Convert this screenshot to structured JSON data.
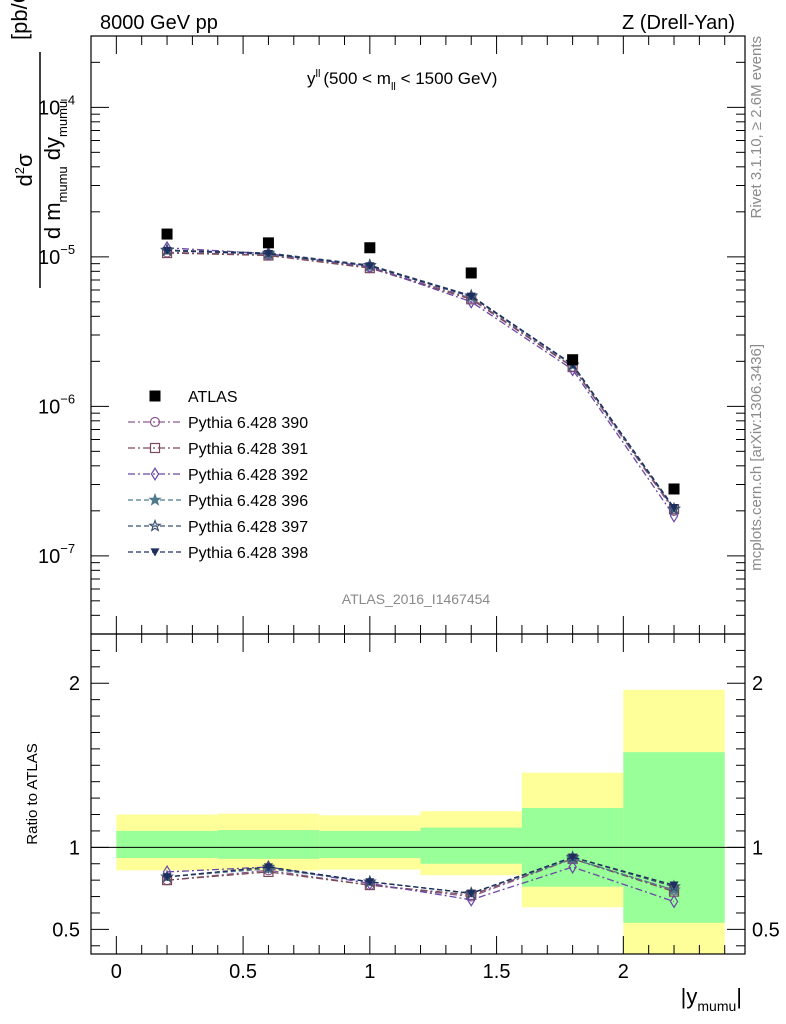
{
  "header": {
    "left": "8000 GeV pp",
    "right": "Z (Drell-Yan)"
  },
  "side_labels": {
    "rivet": "Rivet 3.1.10, ≥ 2.6M events",
    "mcplots": "mcplots.cern.ch [arXiv:1306.3436]"
  },
  "chart_data": {
    "type": "scatter",
    "title": {
      "main": "y",
      "main_sup": "ll",
      "cut_open": "(500 < m",
      "cut_sub": "ll",
      "cut_close": " < 1500 GeV)"
    },
    "analysis_id": "ATLAS_2016_I1467454",
    "x": [
      0.2,
      0.6,
      1.0,
      1.4,
      1.8,
      2.2
    ],
    "x_edges": [
      0,
      0.4,
      0.8,
      1.2,
      1.6,
      2.0,
      2.4
    ],
    "xlim": [
      -0.1,
      2.48
    ],
    "xlabel": {
      "main": "|y",
      "sub": "mumu",
      "close": "|"
    },
    "x_ticks": [
      "0",
      "0.5",
      "1",
      "1.5",
      "2"
    ],
    "x_tick_values": [
      0,
      0.5,
      1,
      1.5,
      2
    ],
    "ylabel": {
      "num": "d",
      "num_sup": "2",
      "sigma": "σ",
      "den_a": "d m",
      "den_a_sub": "mumu",
      "den_b": " dy",
      "den_b_sub": "mumu",
      "unit": "[pb/GeV]"
    },
    "ylim": [
      3e-08,
      0.0003
    ],
    "y_scale": "log",
    "y_ticks": [
      {
        "value": 1e-07,
        "base": "10",
        "exp": "−7"
      },
      {
        "value": 1e-06,
        "base": "10",
        "exp": "−6"
      },
      {
        "value": 1e-05,
        "base": "10",
        "exp": "−5"
      },
      {
        "value": 0.0001,
        "base": "10",
        "exp": "−4"
      }
    ],
    "legend_position": "middle-left",
    "data": {
      "name": "ATLAS",
      "color": "#000000",
      "values": [
        1.42e-05,
        1.24e-05,
        1.15e-05,
        7.8e-06,
        2.05e-06,
        2.8e-07
      ]
    },
    "series": [
      {
        "name": "Pythia 6.428 390",
        "color": "#8a5a8e",
        "marker": "circle-open",
        "dash": "7,3,2,3",
        "values": [
          1.07e-05,
          1.03e-05,
          8.5e-06,
          5.3e-06,
          1.84e-06,
          2e-07
        ]
      },
      {
        "name": "Pythia 6.428 391",
        "color": "#7a4a58",
        "marker": "square-open",
        "dash": "7,3,2,3",
        "values": [
          1.06e-05,
          1.02e-05,
          8.4e-06,
          5.2e-06,
          1.83e-06,
          2.05e-07
        ]
      },
      {
        "name": "Pythia 6.428 392",
        "color": "#6a48a8",
        "marker": "diamond-open",
        "dash": "7,3,2,3",
        "values": [
          1.15e-05,
          1.05e-05,
          8.6e-06,
          5e-06,
          1.76e-06,
          1.85e-07
        ]
      },
      {
        "name": "Pythia 6.428 396",
        "color": "#4e7a8e",
        "marker": "star-filled",
        "dash": "5,3",
        "values": [
          1.1e-05,
          1.04e-05,
          8.7e-06,
          5.4e-06,
          1.88e-06,
          2.05e-07
        ]
      },
      {
        "name": "Pythia 6.428 397",
        "color": "#3a5070",
        "marker": "star-open",
        "dash": "5,3",
        "values": [
          1.11e-05,
          1.06e-05,
          8.8e-06,
          5.5e-06,
          1.9e-06,
          2.06e-07
        ]
      },
      {
        "name": "Pythia 6.428 398",
        "color": "#1e2e5e",
        "marker": "triangle-down",
        "dash": "5,3",
        "values": [
          1.1e-05,
          1.05e-05,
          8.7e-06,
          5.45e-06,
          1.91e-06,
          2.1e-07
        ]
      }
    ],
    "ratio": {
      "ylabel": "Ratio to ATLAS",
      "ylim": [
        0.35,
        2.3
      ],
      "y_ticks": [
        "0.5",
        "1",
        "2"
      ],
      "y_tick_values": [
        0.5,
        1,
        2
      ],
      "band_inner": [
        [
          0.935,
          1.1
        ],
        [
          0.93,
          1.105
        ],
        [
          0.935,
          1.1
        ],
        [
          0.9,
          1.12
        ],
        [
          0.76,
          1.24
        ],
        [
          0.54,
          1.58
        ]
      ],
      "band_outer": [
        [
          0.86,
          1.2
        ],
        [
          0.86,
          1.205
        ],
        [
          0.865,
          1.195
        ],
        [
          0.83,
          1.22
        ],
        [
          0.635,
          1.455
        ],
        [
          0.33,
          1.96
        ]
      ],
      "band_colors": {
        "inner": "#99ff99",
        "outer": "#ffff99"
      },
      "series": [
        [
          0.8,
          0.86,
          0.77,
          0.7,
          0.93,
          0.74
        ],
        [
          0.8,
          0.85,
          0.77,
          0.71,
          0.93,
          0.73
        ],
        [
          0.85,
          0.88,
          0.78,
          0.68,
          0.88,
          0.67
        ],
        [
          0.82,
          0.87,
          0.79,
          0.72,
          0.93,
          0.74
        ],
        [
          0.82,
          0.88,
          0.79,
          0.72,
          0.94,
          0.76
        ],
        [
          0.82,
          0.88,
          0.79,
          0.72,
          0.94,
          0.77
        ]
      ]
    }
  }
}
